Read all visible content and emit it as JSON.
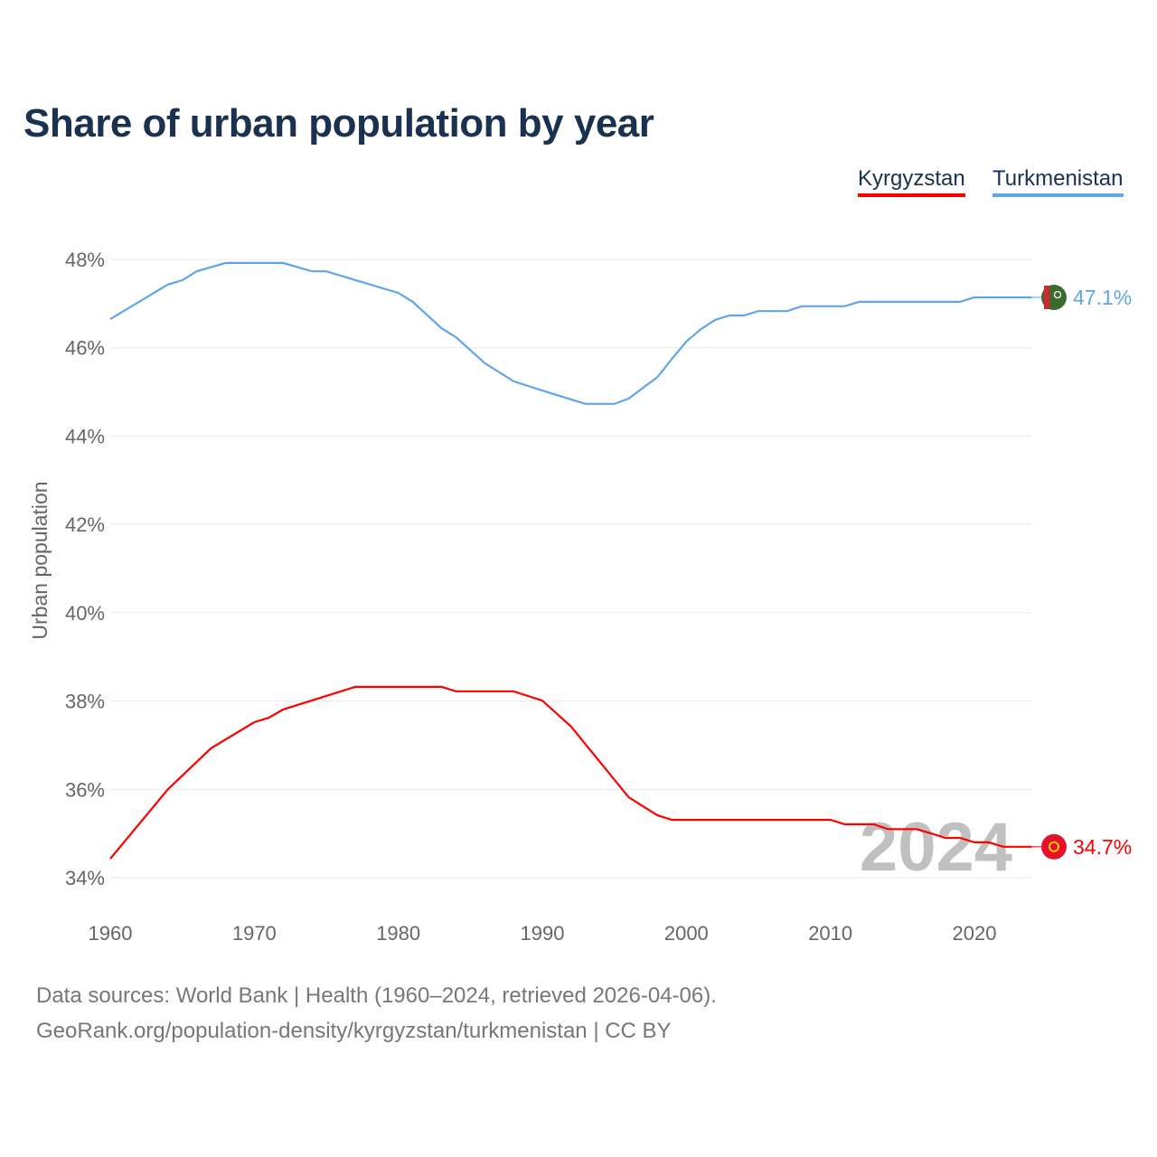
{
  "chart_data": {
    "type": "line",
    "title": "Share of urban population by year",
    "xlabel": "",
    "ylabel": "Urban population",
    "xlim": [
      1960,
      2024
    ],
    "ylim": [
      34,
      48
    ],
    "x_ticks": [
      "1960",
      "1970",
      "1980",
      "1990",
      "2000",
      "2010",
      "2020"
    ],
    "y_ticks": [
      "34%",
      "36%",
      "38%",
      "40%",
      "42%",
      "44%",
      "46%",
      "48%"
    ],
    "grid": true,
    "legend_position": "top-right",
    "year_watermark": "2024",
    "series": [
      {
        "name": "Kyrgyzstan",
        "color": "#ff0000",
        "end_label": "34.7%",
        "flag": "kyrgyzstan-flag",
        "points": [
          [
            1960,
            34.43
          ],
          [
            1964,
            36.0
          ],
          [
            1967,
            36.93
          ],
          [
            1970,
            37.52
          ],
          [
            1971,
            37.62
          ],
          [
            1972,
            37.81
          ],
          [
            1977,
            38.32
          ],
          [
            1983,
            38.32
          ],
          [
            1984,
            38.22
          ],
          [
            1988,
            38.22
          ],
          [
            1990,
            38.01
          ],
          [
            1992,
            37.42
          ],
          [
            1996,
            35.82
          ],
          [
            1998,
            35.41
          ],
          [
            1999,
            35.31
          ],
          [
            2010,
            35.31
          ],
          [
            2011,
            35.21
          ],
          [
            2013,
            35.21
          ],
          [
            2014,
            35.1
          ],
          [
            2016,
            35.1
          ],
          [
            2017,
            35.0
          ],
          [
            2018,
            34.9
          ],
          [
            2019,
            34.9
          ],
          [
            2020,
            34.8
          ],
          [
            2021,
            34.8
          ],
          [
            2022,
            34.7
          ],
          [
            2024,
            34.7
          ]
        ]
      },
      {
        "name": "Turkmenistan",
        "color": "#60a5ea",
        "end_label": "47.1%",
        "flag": "turkmenistan-flag",
        "points": [
          [
            1960,
            46.65
          ],
          [
            1964,
            47.43
          ],
          [
            1965,
            47.53
          ],
          [
            1966,
            47.73
          ],
          [
            1968,
            47.92
          ],
          [
            1972,
            47.92
          ],
          [
            1974,
            47.73
          ],
          [
            1975,
            47.73
          ],
          [
            1980,
            47.24
          ],
          [
            1981,
            47.04
          ],
          [
            1983,
            46.44
          ],
          [
            1984,
            46.24
          ],
          [
            1986,
            45.65
          ],
          [
            1988,
            45.24
          ],
          [
            1990,
            45.03
          ],
          [
            1993,
            44.73
          ],
          [
            1995,
            44.73
          ],
          [
            1996,
            44.85
          ],
          [
            1998,
            45.34
          ],
          [
            1999,
            45.75
          ],
          [
            2000,
            46.14
          ],
          [
            2001,
            46.42
          ],
          [
            2002,
            46.63
          ],
          [
            2003,
            46.73
          ],
          [
            2004,
            46.73
          ],
          [
            2005,
            46.83
          ],
          [
            2007,
            46.83
          ],
          [
            2008,
            46.94
          ],
          [
            2011,
            46.94
          ],
          [
            2012,
            47.04
          ],
          [
            2019,
            47.04
          ],
          [
            2020,
            47.14
          ],
          [
            2024,
            47.14
          ]
        ]
      }
    ]
  },
  "footer": {
    "line1": "Data sources: World Bank | Health (1960–2024, retrieved 2026-04-06).",
    "line2": "GeoRank.org/population-density/kyrgyzstan/turkmenistan | CC BY"
  }
}
